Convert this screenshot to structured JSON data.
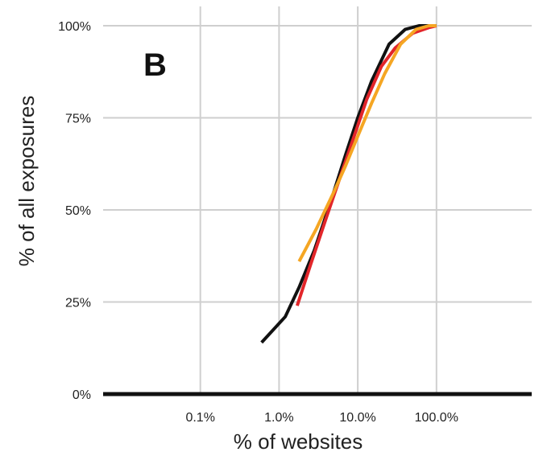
{
  "chart_data": {
    "type": "line",
    "panel_label": "B",
    "xlabel": "% of websites",
    "ylabel": "% of all exposures",
    "x_scale": "log",
    "xlim": [
      0.01,
      100
    ],
    "ylim": [
      0,
      100
    ],
    "x_ticks": [
      {
        "value": 0.1,
        "label": "0.1%"
      },
      {
        "value": 1,
        "label": "1.0%"
      },
      {
        "value": 10,
        "label": "10.0%"
      },
      {
        "value": 100,
        "label": "100.0%"
      }
    ],
    "y_ticks": [
      {
        "value": 0,
        "label": "0%"
      },
      {
        "value": 25,
        "label": "25%"
      },
      {
        "value": 50,
        "label": "50%"
      },
      {
        "value": 75,
        "label": "75%"
      },
      {
        "value": 100,
        "label": "100%"
      }
    ],
    "grid": true,
    "legend": "none",
    "series": [
      {
        "color": "#111111",
        "x": [
          0.6,
          1.2,
          1.8,
          2.8,
          4.5,
          7,
          10,
          15,
          25,
          40,
          60,
          100
        ],
        "y": [
          14,
          21,
          29,
          39,
          52,
          65,
          75,
          85,
          95,
          99,
          100,
          100
        ]
      },
      {
        "color": "#e2262a",
        "x": [
          1.7,
          2.5,
          4,
          6,
          9,
          13,
          20,
          30,
          50,
          80,
          100
        ],
        "y": [
          24,
          35,
          48,
          59,
          70,
          80,
          89,
          94,
          98,
          99.5,
          100
        ]
      },
      {
        "color": "#f5a623",
        "x": [
          1.8,
          3,
          5,
          7,
          10,
          15,
          22,
          35,
          55,
          80,
          100
        ],
        "y": [
          36,
          45,
          55,
          62,
          70,
          79,
          87,
          95,
          99,
          100,
          100
        ]
      }
    ]
  }
}
